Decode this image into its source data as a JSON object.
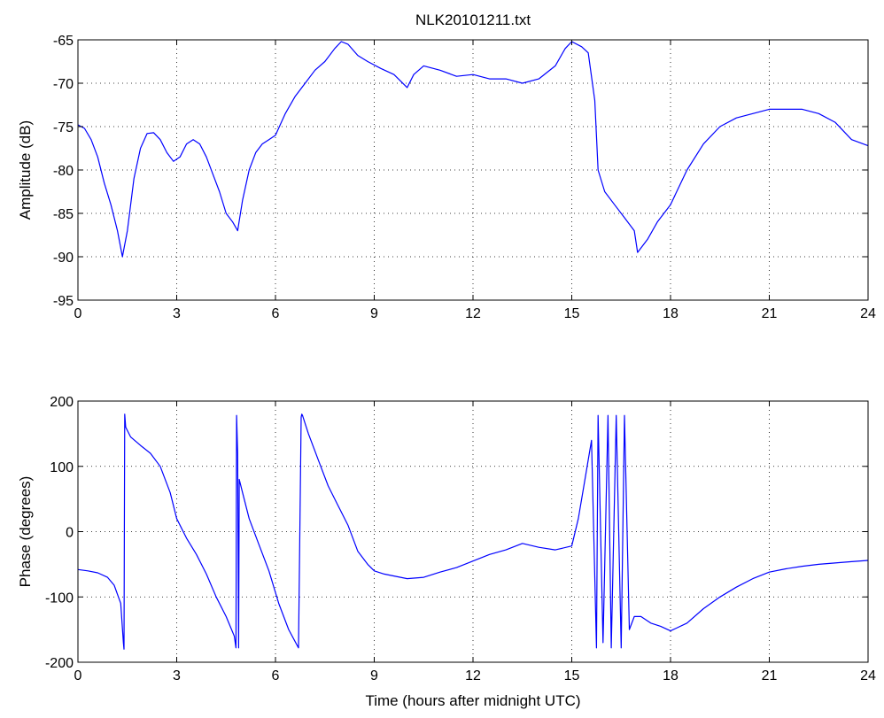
{
  "figure": {
    "title": "NLK20101211.txt",
    "line_color": "#0000ff"
  },
  "chart_data": [
    {
      "type": "line",
      "title": "NLK20101211.txt",
      "xlabel": "",
      "ylabel": "Amplitude (dB)",
      "xlim": [
        0,
        24
      ],
      "ylim": [
        -95,
        -65
      ],
      "xticks": [
        0,
        3,
        6,
        9,
        12,
        15,
        18,
        21,
        24
      ],
      "yticks": [
        -95,
        -90,
        -85,
        -80,
        -75,
        -70,
        -65
      ],
      "grid": true,
      "series": [
        {
          "color": "#0000ff",
          "x": [
            0,
            0.2,
            0.4,
            0.6,
            0.8,
            1.0,
            1.2,
            1.35,
            1.5,
            1.7,
            1.9,
            2.1,
            2.3,
            2.5,
            2.7,
            2.9,
            3.1,
            3.3,
            3.5,
            3.7,
            3.9,
            4.1,
            4.3,
            4.5,
            4.7,
            4.85,
            5.0,
            5.2,
            5.4,
            5.6,
            5.8,
            6.0,
            6.3,
            6.6,
            6.9,
            7.2,
            7.5,
            7.8,
            8.0,
            8.2,
            8.5,
            8.8,
            9.2,
            9.6,
            10.0,
            10.2,
            10.5,
            11.0,
            11.5,
            12.0,
            12.5,
            13.0,
            13.5,
            14.0,
            14.5,
            14.8,
            15.0,
            15.3,
            15.5,
            15.7,
            15.8,
            16.0,
            16.3,
            16.6,
            16.9,
            17.0,
            17.3,
            17.6,
            18.0,
            18.5,
            19.0,
            19.5,
            20.0,
            20.5,
            21.0,
            21.5,
            22.0,
            22.5,
            23.0,
            23.5,
            24.0
          ],
          "y": [
            -74.8,
            -75.2,
            -76.5,
            -78.5,
            -81.5,
            -84.0,
            -87.0,
            -90.0,
            -87.0,
            -81.0,
            -77.5,
            -75.8,
            -75.7,
            -76.5,
            -78.0,
            -79.0,
            -78.5,
            -77.0,
            -76.5,
            -77.0,
            -78.5,
            -80.5,
            -82.5,
            -85.0,
            -86.0,
            -87.0,
            -83.5,
            -80.0,
            -78.0,
            -77.0,
            -76.5,
            -76.0,
            -73.5,
            -71.5,
            -70.0,
            -68.5,
            -67.5,
            -66.0,
            -65.2,
            -65.5,
            -66.8,
            -67.5,
            -68.3,
            -69.0,
            -70.5,
            -69.0,
            -68.0,
            -68.5,
            -69.2,
            -69.0,
            -69.5,
            -69.5,
            -70.0,
            -69.5,
            -68.0,
            -66.0,
            -65.2,
            -65.8,
            -66.5,
            -72.0,
            -80.0,
            -82.5,
            -84.0,
            -85.5,
            -87.0,
            -89.5,
            -88.0,
            -86.0,
            -84.0,
            -80.0,
            -77.0,
            -75.0,
            -74.0,
            -73.5,
            -73.0,
            -73.0,
            -73.0,
            -73.5,
            -74.5,
            -76.5,
            -77.2
          ]
        }
      ]
    },
    {
      "type": "line",
      "title": "",
      "xlabel": "Time (hours after midnight UTC)",
      "ylabel": "Phase (degrees)",
      "xlim": [
        0,
        24
      ],
      "ylim": [
        -200,
        200
      ],
      "xticks": [
        0,
        3,
        6,
        9,
        12,
        15,
        18,
        21,
        24
      ],
      "yticks": [
        -200,
        -100,
        0,
        100,
        200
      ],
      "grid": true,
      "series": [
        {
          "color": "#0000ff",
          "x": [
            0,
            0.3,
            0.6,
            0.9,
            1.1,
            1.3,
            1.38,
            1.4,
            1.42,
            1.45,
            1.6,
            1.9,
            2.2,
            2.5,
            2.8,
            3.0,
            3.3,
            3.6,
            3.9,
            4.2,
            4.5,
            4.75,
            4.8,
            4.82,
            4.85,
            4.88,
            4.9,
            5.0,
            5.2,
            5.5,
            5.8,
            6.1,
            6.4,
            6.7,
            6.78,
            6.8,
            6.82,
            7.0,
            7.3,
            7.6,
            7.9,
            8.2,
            8.5,
            8.8,
            9.0,
            9.3,
            9.6,
            10.0,
            10.5,
            11.0,
            11.5,
            12.0,
            12.5,
            13.0,
            13.5,
            14.0,
            14.5,
            15.0,
            15.2,
            15.4,
            15.6,
            15.75,
            15.8,
            15.95,
            16.1,
            16.2,
            16.35,
            16.5,
            16.6,
            16.75,
            16.9,
            17.1,
            17.4,
            17.7,
            18.0,
            18.5,
            19.0,
            19.5,
            20.0,
            20.5,
            21.0,
            21.5,
            22.0,
            22.5,
            23.0,
            23.5,
            24.0
          ],
          "y": [
            -58,
            -60,
            -63,
            -70,
            -82,
            -110,
            -170,
            -180,
            180,
            160,
            145,
            132,
            120,
            100,
            60,
            20,
            -10,
            -35,
            -65,
            -100,
            -130,
            -160,
            -178,
            178,
            120,
            -178,
            80,
            60,
            20,
            -20,
            -60,
            -110,
            -150,
            -178,
            175,
            180,
            178,
            150,
            110,
            70,
            40,
            10,
            -30,
            -50,
            -60,
            -65,
            -68,
            -72,
            -70,
            -62,
            -55,
            -45,
            -35,
            -28,
            -18,
            -24,
            -28,
            -22,
            20,
            80,
            140,
            -178,
            178,
            -170,
            178,
            -178,
            178,
            -178,
            178,
            -150,
            -130,
            -130,
            -140,
            -145,
            -152,
            -140,
            -118,
            -100,
            -85,
            -72,
            -62,
            -57,
            -53,
            -50,
            -48,
            -46,
            -44
          ]
        }
      ]
    }
  ]
}
